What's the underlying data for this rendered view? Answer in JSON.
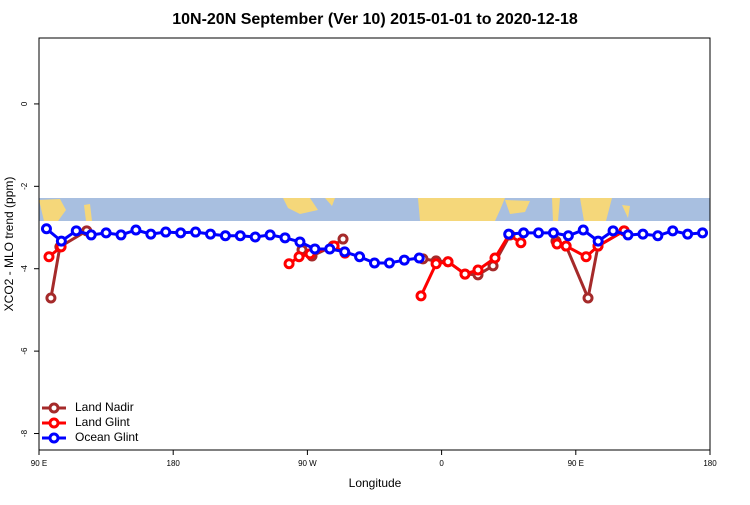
{
  "chart_data": {
    "type": "line",
    "title": "10N-20N September (Ver 10)   2015-01-01 to 2020-12-18",
    "xlabel": "Longitude",
    "ylabel": "XCO2 - MLO trend (ppm)",
    "xlim": [
      90,
      540
    ],
    "ylim": [
      -8.4,
      1.6
    ],
    "xticks": [
      {
        "value": 90,
        "label": "90 E"
      },
      180,
      {
        "value": 270,
        "label": "90 W"
      },
      {
        "value": 360,
        "label": "0"
      },
      {
        "value": 450,
        "label": "90 E"
      },
      {
        "value": 540,
        "label": "180"
      }
    ],
    "yticks": [
      0,
      -2,
      -4,
      -6,
      -8
    ],
    "legend": "bottom-left",
    "series": [
      {
        "name": "Land Nadir",
        "color": "#a52a2a",
        "x": [
          98,
          104,
          122,
          null,
          266.4,
          273.1,
          287.2,
          293.9,
          null,
          347.5,
          356.3,
          364.3,
          375.7,
          384.4,
          394.5,
          405.9,
          null,
          436.7,
          443.5,
          458.2,
          464.9,
          482.4
        ],
        "values": [
          -4.71,
          -3.47,
          -3.08,
          null,
          -3.54,
          -3.69,
          -3.45,
          -3.28,
          null,
          -3.76,
          -3.81,
          -3.83,
          -4.13,
          -4.15,
          -3.93,
          -3.18,
          null,
          -3.33,
          -3.45,
          -4.71,
          -3.45,
          -3.08
        ]
      },
      {
        "name": "Land Glint",
        "color": "#ff0000",
        "x": [
          96.7,
          104.8,
          null,
          257.7,
          264.4,
          271.8,
          287.9,
          295.2,
          null,
          346.2,
          356.3,
          364.3,
          375.7,
          384.4,
          395.8,
          405.2,
          413.2,
          null,
          437.4,
          443.5,
          456.9,
          464.9,
          482.4
        ],
        "values": [
          -3.71,
          -3.47,
          null,
          -3.88,
          -3.71,
          -3.64,
          -3.45,
          -3.62,
          null,
          -4.66,
          -3.88,
          -3.83,
          -4.13,
          -4.03,
          -3.74,
          -3.18,
          -3.37,
          null,
          -3.4,
          -3.45,
          -3.71,
          -3.45,
          -3.08
        ]
      },
      {
        "name": "Ocean Glint",
        "color": "#0000ff",
        "x": [
          95,
          105,
          115,
          125,
          135,
          145,
          155,
          165,
          175,
          185,
          195,
          205,
          215,
          225,
          235,
          245,
          255,
          265,
          275,
          285,
          295,
          305,
          315,
          325,
          335,
          345,
          null,
          405,
          415,
          425,
          435,
          445,
          455,
          465,
          475,
          485,
          495,
          505,
          515,
          525,
          535
        ],
        "values": [
          -3.03,
          -3.33,
          -3.08,
          -3.18,
          -3.13,
          -3.18,
          -3.06,
          -3.16,
          -3.11,
          -3.13,
          -3.11,
          -3.16,
          -3.2,
          -3.2,
          -3.23,
          -3.18,
          -3.25,
          -3.35,
          -3.52,
          -3.52,
          -3.59,
          -3.71,
          -3.86,
          -3.86,
          -3.79,
          -3.74,
          null,
          -3.16,
          -3.13,
          -3.13,
          -3.13,
          -3.2,
          -3.06,
          -3.33,
          -3.08,
          -3.18,
          -3.16,
          -3.2,
          -3.08,
          -3.16,
          -3.13
        ]
      }
    ]
  }
}
